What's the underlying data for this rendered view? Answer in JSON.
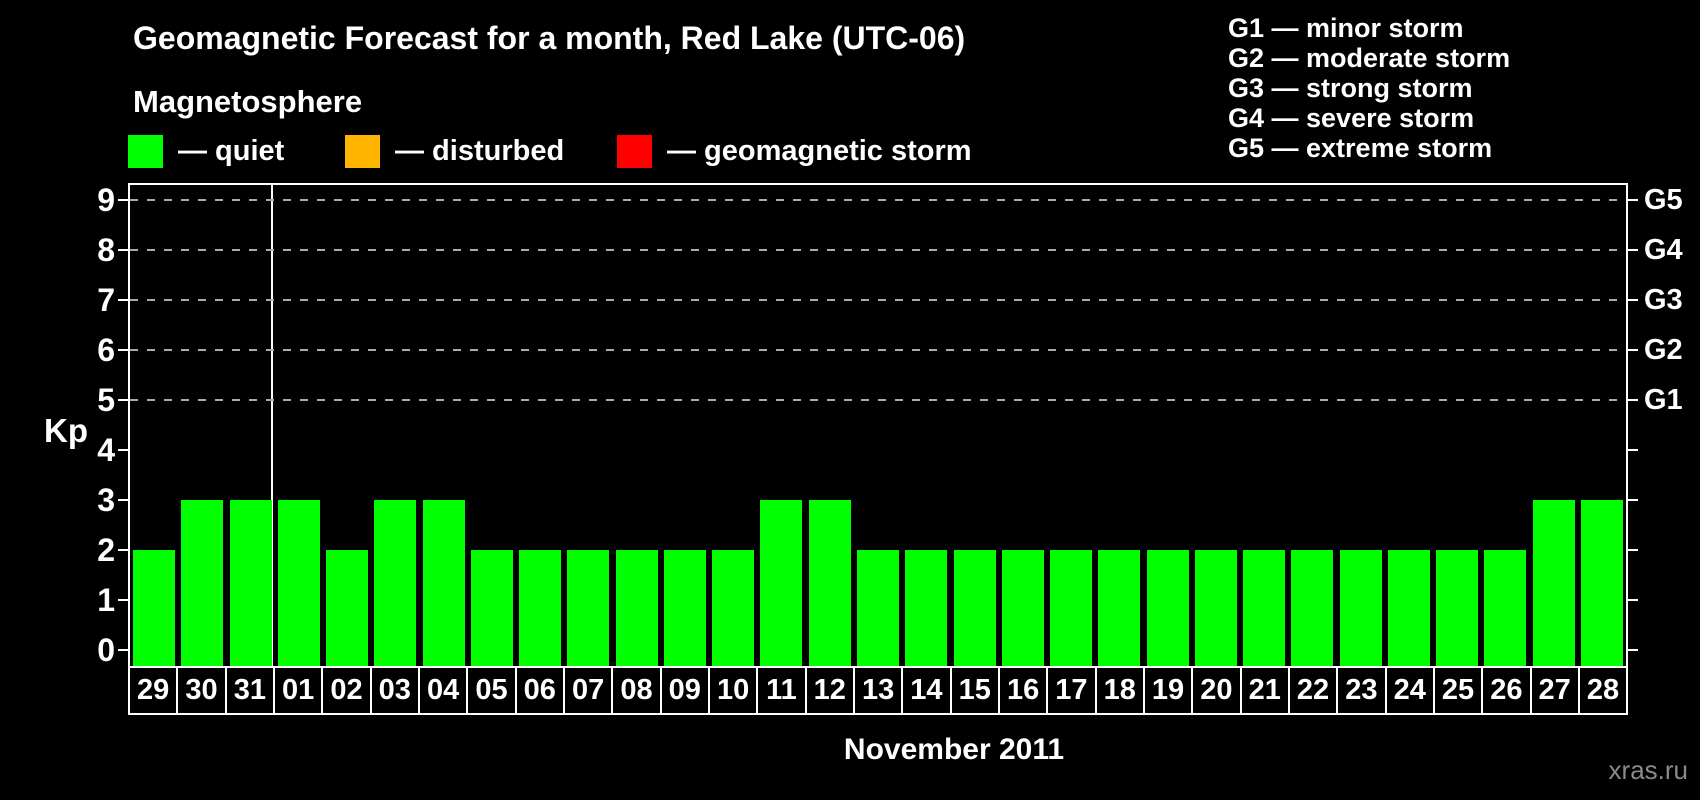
{
  "title": "Geomagnetic Forecast for a month, Red Lake (UTC-06)",
  "legend": {
    "title": "Magnetosphere",
    "items": [
      {
        "name": "quiet",
        "label": "quiet",
        "color": "#00ff00"
      },
      {
        "name": "disturbed",
        "label": "disturbed",
        "color": "#ffb400"
      },
      {
        "name": "geomagnetic-storm",
        "label": "geomagnetic storm",
        "color": "#ff0000"
      }
    ]
  },
  "storm_scale_legend": [
    {
      "code": "G1",
      "label": "minor storm"
    },
    {
      "code": "G2",
      "label": "moderate storm"
    },
    {
      "code": "G3",
      "label": "strong storm"
    },
    {
      "code": "G4",
      "label": "severe storm"
    },
    {
      "code": "G5",
      "label": "extreme storm"
    }
  ],
  "chart_data": {
    "type": "bar",
    "title": "Geomagnetic Forecast for a month, Red Lake (UTC-06)",
    "ylabel": "Kp",
    "xlabel": "November 2011",
    "ylim": [
      0,
      9
    ],
    "y_ticks": [
      0,
      1,
      2,
      3,
      4,
      5,
      6,
      7,
      8,
      9
    ],
    "grid_levels": [
      5,
      6,
      7,
      8,
      9
    ],
    "right_axis_labels": [
      {
        "label": "G1",
        "value": 5
      },
      {
        "label": "G2",
        "value": 6
      },
      {
        "label": "G3",
        "value": 7
      },
      {
        "label": "G4",
        "value": 8
      },
      {
        "label": "G5",
        "value": 9
      }
    ],
    "categories": [
      "29",
      "30",
      "31",
      "01",
      "02",
      "03",
      "04",
      "05",
      "06",
      "07",
      "08",
      "09",
      "10",
      "11",
      "12",
      "13",
      "14",
      "15",
      "16",
      "17",
      "18",
      "19",
      "20",
      "21",
      "22",
      "23",
      "24",
      "25",
      "26",
      "27",
      "28"
    ],
    "values": [
      2,
      3,
      3,
      3,
      2,
      3,
      3,
      2,
      2,
      2,
      2,
      2,
      2,
      3,
      3,
      2,
      2,
      2,
      2,
      2,
      2,
      2,
      2,
      2,
      2,
      2,
      2,
      2,
      2,
      3,
      3
    ],
    "bar_color": "#00ff00",
    "month_separator_after_index": 2,
    "legend_position": "top",
    "grid": "dashed-horizontal"
  },
  "watermark": "xras.ru"
}
